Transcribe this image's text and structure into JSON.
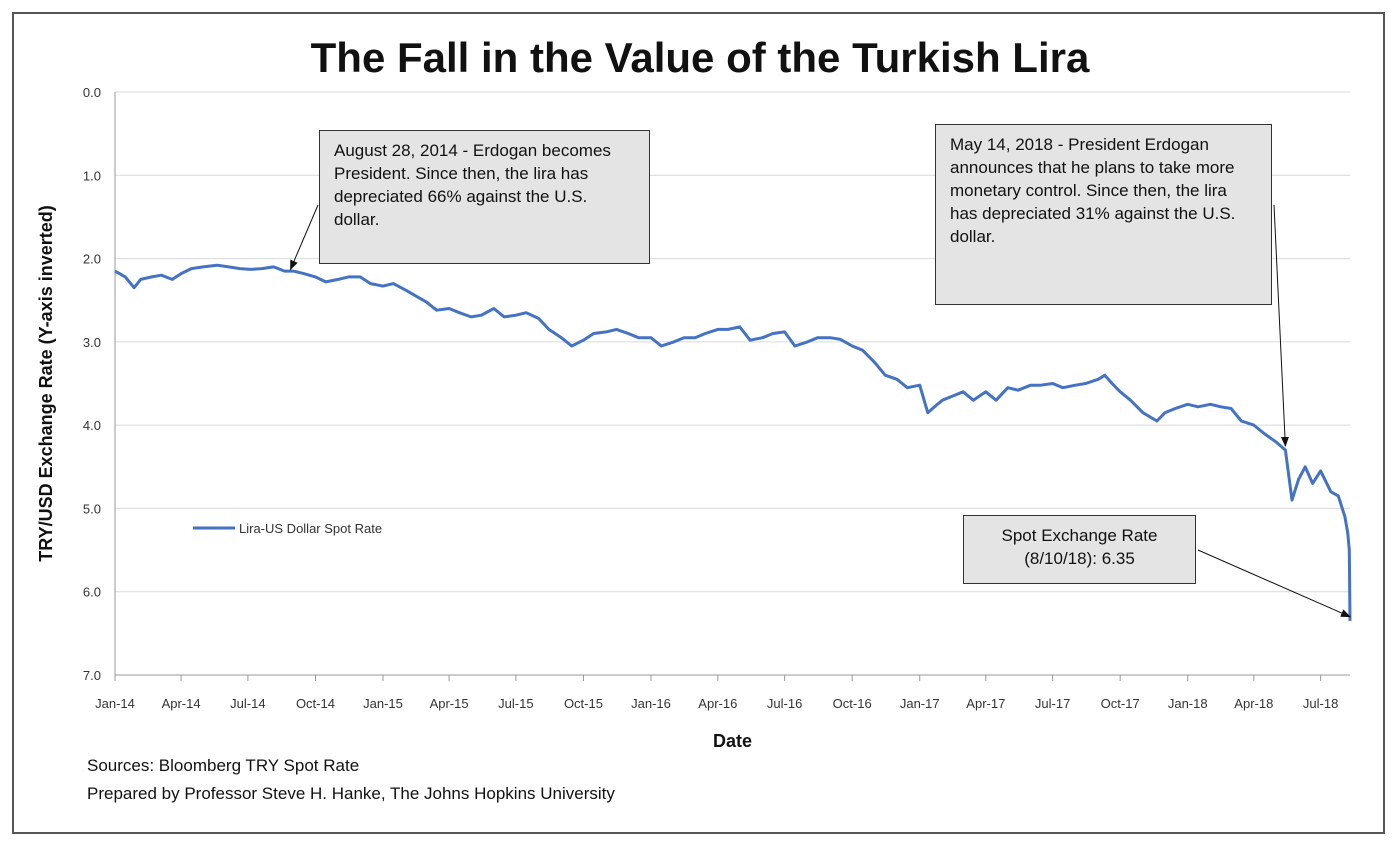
{
  "chart_data": {
    "type": "line",
    "title": "The Fall in the Value of the Turkish Lira",
    "xlabel": "Date",
    "ylabel": "TRY/USD Exchange Rate (Y-axis inverted)",
    "y_inverted": true,
    "ylim": [
      0,
      7
    ],
    "yticks": [
      "0.0",
      "1.0",
      "2.0",
      "3.0",
      "4.0",
      "5.0",
      "6.0",
      "7.0"
    ],
    "xlim": [
      "2014-01-01",
      "2018-08-10"
    ],
    "xticks": [
      {
        "date": "2014-01-01",
        "label": "Jan-14"
      },
      {
        "date": "2014-04-01",
        "label": "Apr-14"
      },
      {
        "date": "2014-07-01",
        "label": "Jul-14"
      },
      {
        "date": "2014-10-01",
        "label": "Oct-14"
      },
      {
        "date": "2015-01-01",
        "label": "Jan-15"
      },
      {
        "date": "2015-04-01",
        "label": "Apr-15"
      },
      {
        "date": "2015-07-01",
        "label": "Jul-15"
      },
      {
        "date": "2015-10-01",
        "label": "Oct-15"
      },
      {
        "date": "2016-01-01",
        "label": "Jan-16"
      },
      {
        "date": "2016-04-01",
        "label": "Apr-16"
      },
      {
        "date": "2016-07-01",
        "label": "Jul-16"
      },
      {
        "date": "2016-10-01",
        "label": "Oct-16"
      },
      {
        "date": "2017-01-01",
        "label": "Jan-17"
      },
      {
        "date": "2017-04-01",
        "label": "Apr-17"
      },
      {
        "date": "2017-07-01",
        "label": "Jul-17"
      },
      {
        "date": "2017-10-01",
        "label": "Oct-17"
      },
      {
        "date": "2018-01-01",
        "label": "Jan-18"
      },
      {
        "date": "2018-04-01",
        "label": "Apr-18"
      },
      {
        "date": "2018-07-01",
        "label": "Jul-18"
      }
    ],
    "grid": "horizontal",
    "legend": {
      "position": "left-middle",
      "label": "Lira-US Dollar Spot Rate"
    },
    "series": [
      {
        "name": "Lira-US Dollar Spot Rate",
        "color": "#4472c4",
        "points": [
          [
            "2014-01-01",
            2.15
          ],
          [
            "2014-01-15",
            2.22
          ],
          [
            "2014-01-27",
            2.35
          ],
          [
            "2014-02-05",
            2.25
          ],
          [
            "2014-02-20",
            2.22
          ],
          [
            "2014-03-05",
            2.2
          ],
          [
            "2014-03-20",
            2.25
          ],
          [
            "2014-04-01",
            2.18
          ],
          [
            "2014-04-15",
            2.12
          ],
          [
            "2014-05-01",
            2.1
          ],
          [
            "2014-05-20",
            2.08
          ],
          [
            "2014-06-05",
            2.1
          ],
          [
            "2014-06-20",
            2.12
          ],
          [
            "2014-07-05",
            2.13
          ],
          [
            "2014-07-20",
            2.12
          ],
          [
            "2014-08-05",
            2.1
          ],
          [
            "2014-08-20",
            2.15
          ],
          [
            "2014-09-01",
            2.15
          ],
          [
            "2014-09-15",
            2.18
          ],
          [
            "2014-10-01",
            2.22
          ],
          [
            "2014-10-15",
            2.28
          ],
          [
            "2014-11-01",
            2.25
          ],
          [
            "2014-11-15",
            2.22
          ],
          [
            "2014-12-01",
            2.22
          ],
          [
            "2014-12-15",
            2.3
          ],
          [
            "2015-01-01",
            2.33
          ],
          [
            "2015-01-15",
            2.3
          ],
          [
            "2015-02-01",
            2.38
          ],
          [
            "2015-02-15",
            2.45
          ],
          [
            "2015-03-01",
            2.52
          ],
          [
            "2015-03-15",
            2.62
          ],
          [
            "2015-04-01",
            2.6
          ],
          [
            "2015-04-15",
            2.65
          ],
          [
            "2015-05-01",
            2.7
          ],
          [
            "2015-05-15",
            2.68
          ],
          [
            "2015-06-01",
            2.6
          ],
          [
            "2015-06-15",
            2.7
          ],
          [
            "2015-07-01",
            2.68
          ],
          [
            "2015-07-15",
            2.65
          ],
          [
            "2015-08-01",
            2.72
          ],
          [
            "2015-08-15",
            2.85
          ],
          [
            "2015-09-01",
            2.95
          ],
          [
            "2015-09-15",
            3.05
          ],
          [
            "2015-10-01",
            2.98
          ],
          [
            "2015-10-15",
            2.9
          ],
          [
            "2015-11-01",
            2.88
          ],
          [
            "2015-11-15",
            2.85
          ],
          [
            "2015-12-01",
            2.9
          ],
          [
            "2015-12-15",
            2.95
          ],
          [
            "2016-01-01",
            2.95
          ],
          [
            "2016-01-15",
            3.05
          ],
          [
            "2016-02-01",
            3.0
          ],
          [
            "2016-02-15",
            2.95
          ],
          [
            "2016-03-01",
            2.95
          ],
          [
            "2016-03-15",
            2.9
          ],
          [
            "2016-04-01",
            2.85
          ],
          [
            "2016-04-15",
            2.85
          ],
          [
            "2016-05-01",
            2.82
          ],
          [
            "2016-05-15",
            2.98
          ],
          [
            "2016-06-01",
            2.95
          ],
          [
            "2016-06-15",
            2.9
          ],
          [
            "2016-07-01",
            2.88
          ],
          [
            "2016-07-15",
            3.05
          ],
          [
            "2016-08-01",
            3.0
          ],
          [
            "2016-08-15",
            2.95
          ],
          [
            "2016-09-01",
            2.95
          ],
          [
            "2016-09-15",
            2.97
          ],
          [
            "2016-10-01",
            3.05
          ],
          [
            "2016-10-15",
            3.1
          ],
          [
            "2016-11-01",
            3.25
          ],
          [
            "2016-11-15",
            3.4
          ],
          [
            "2016-12-01",
            3.45
          ],
          [
            "2016-12-15",
            3.55
          ],
          [
            "2017-01-01",
            3.52
          ],
          [
            "2017-01-12",
            3.85
          ],
          [
            "2017-01-25",
            3.75
          ],
          [
            "2017-02-01",
            3.7
          ],
          [
            "2017-02-15",
            3.65
          ],
          [
            "2017-03-01",
            3.6
          ],
          [
            "2017-03-15",
            3.7
          ],
          [
            "2017-04-01",
            3.6
          ],
          [
            "2017-04-15",
            3.7
          ],
          [
            "2017-05-01",
            3.55
          ],
          [
            "2017-05-15",
            3.58
          ],
          [
            "2017-06-01",
            3.52
          ],
          [
            "2017-06-15",
            3.52
          ],
          [
            "2017-07-01",
            3.5
          ],
          [
            "2017-07-15",
            3.55
          ],
          [
            "2017-08-01",
            3.52
          ],
          [
            "2017-08-15",
            3.5
          ],
          [
            "2017-09-01",
            3.45
          ],
          [
            "2017-09-10",
            3.4
          ],
          [
            "2017-09-20",
            3.5
          ],
          [
            "2017-10-01",
            3.6
          ],
          [
            "2017-10-15",
            3.7
          ],
          [
            "2017-11-01",
            3.85
          ],
          [
            "2017-11-20",
            3.95
          ],
          [
            "2017-12-01",
            3.85
          ],
          [
            "2017-12-15",
            3.8
          ],
          [
            "2018-01-01",
            3.75
          ],
          [
            "2018-01-15",
            3.78
          ],
          [
            "2018-02-01",
            3.75
          ],
          [
            "2018-02-15",
            3.78
          ],
          [
            "2018-03-01",
            3.8
          ],
          [
            "2018-03-15",
            3.95
          ],
          [
            "2018-04-01",
            4.0
          ],
          [
            "2018-04-15",
            4.1
          ],
          [
            "2018-05-01",
            4.2
          ],
          [
            "2018-05-14",
            4.3
          ],
          [
            "2018-05-23",
            4.9
          ],
          [
            "2018-06-01",
            4.65
          ],
          [
            "2018-06-10",
            4.5
          ],
          [
            "2018-06-20",
            4.7
          ],
          [
            "2018-07-01",
            4.55
          ],
          [
            "2018-07-15",
            4.8
          ],
          [
            "2018-07-25",
            4.85
          ],
          [
            "2018-08-03",
            5.1
          ],
          [
            "2018-08-07",
            5.3
          ],
          [
            "2018-08-09",
            5.5
          ],
          [
            "2018-08-10",
            6.35
          ]
        ]
      }
    ],
    "annotations": [
      {
        "id": "note-1",
        "text": "August 28, 2014 - Erdogan becomes President.  Since then, the lira has depreciated 66% against the U.S. dollar.",
        "arrow_to": [
          "2014-08-28",
          2.13
        ]
      },
      {
        "id": "note-2",
        "text": "May 14, 2018 - President Erdogan announces that he plans to take more monetary control. Since then, the lira has depreciated 31% against the U.S. dollar.",
        "arrow_to": [
          "2018-05-14",
          4.25
        ]
      },
      {
        "id": "note-3",
        "text_line1": "Spot Exchange Rate",
        "text_line2": "(8/10/18): 6.35",
        "arrow_to": [
          "2018-08-10",
          6.3
        ]
      }
    ]
  },
  "footer": {
    "source": "Sources: Bloomberg TRY Spot Rate",
    "prepared": "Prepared by Professor Steve H. Hanke, The Johns Hopkins University"
  }
}
